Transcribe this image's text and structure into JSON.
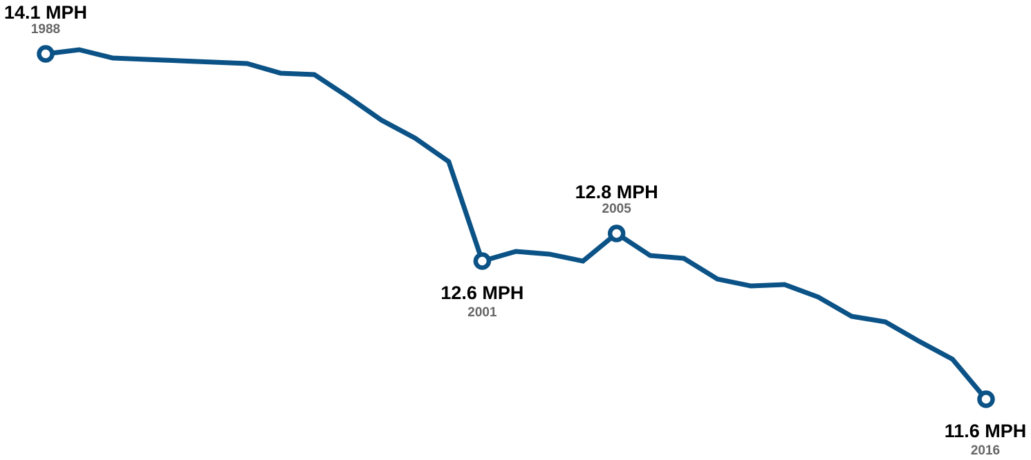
{
  "chart_data": {
    "type": "line",
    "title": "",
    "xlabel": "",
    "ylabel": "",
    "x": [
      1988,
      1989,
      1990,
      1991,
      1992,
      1993,
      1994,
      1995,
      1996,
      1997,
      1998,
      1999,
      2000,
      2001,
      2002,
      2003,
      2004,
      2005,
      2006,
      2007,
      2008,
      2009,
      2010,
      2011,
      2012,
      2013,
      2014,
      2015,
      2016
    ],
    "series": [
      {
        "values": [
          14.1,
          14.13,
          14.07,
          14.06,
          14.05,
          14.04,
          14.03,
          13.96,
          13.95,
          13.79,
          13.62,
          13.49,
          13.32,
          12.6,
          12.67,
          12.65,
          12.6,
          12.8,
          12.64,
          12.62,
          12.47,
          12.42,
          12.43,
          12.34,
          12.2,
          12.16,
          12.02,
          11.89,
          11.6
        ],
        "color": "#0b5286"
      }
    ],
    "xlim": [
      1988,
      2016
    ],
    "ylim": [
      11.6,
      14.13
    ],
    "grid": false,
    "legend": "none",
    "annotations": [
      {
        "x": 1988,
        "value": "14.1 MPH",
        "year": "1988",
        "position": "above"
      },
      {
        "x": 2001,
        "value": "12.6 MPH",
        "year": "2001",
        "position": "below"
      },
      {
        "x": 2005,
        "value": "12.8 MPH",
        "year": "2005",
        "position": "above"
      },
      {
        "x": 2016,
        "value": "11.6 MPH",
        "year": "2016",
        "position": "below"
      }
    ],
    "colors": {
      "line": "#0b5286",
      "marker_fill": "#ffffff",
      "value_text": "#000000",
      "year_text": "#666666"
    }
  }
}
